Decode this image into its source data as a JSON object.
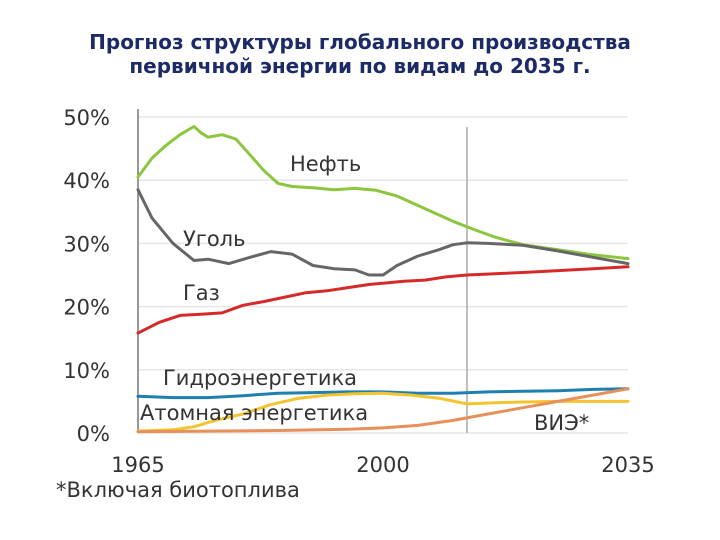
{
  "chart_data": {
    "type": "line",
    "title_lines": [
      "Прогноз структуры глобального производства",
      "первичной энергии по видам до 2035 г."
    ],
    "xlim": [
      1965,
      2035
    ],
    "ylim": [
      0,
      50
    ],
    "x_ticks": [
      1965,
      2000,
      2035
    ],
    "x_tick_labels": [
      "1965",
      "2000",
      "2035"
    ],
    "y_ticks": [
      0,
      10,
      20,
      30,
      40,
      50
    ],
    "y_tick_labels": [
      "0%",
      "10%",
      "20%",
      "30%",
      "40%",
      "50%"
    ],
    "forecast_start_year": 2012,
    "footnote": "*Включая биотоплива",
    "series": [
      {
        "name": "Нефть",
        "color": "#8cc63f",
        "points": [
          [
            1965,
            40.5
          ],
          [
            1967,
            43.5
          ],
          [
            1969,
            45.5
          ],
          [
            1971,
            47.2
          ],
          [
            1973,
            48.5
          ],
          [
            1974,
            47.5
          ],
          [
            1975,
            46.8
          ],
          [
            1977,
            47.2
          ],
          [
            1979,
            46.5
          ],
          [
            1981,
            44
          ],
          [
            1983,
            41.5
          ],
          [
            1985,
            39.5
          ],
          [
            1987,
            39
          ],
          [
            1990,
            38.8
          ],
          [
            1993,
            38.5
          ],
          [
            1996,
            38.7
          ],
          [
            1999,
            38.4
          ],
          [
            2002,
            37.5
          ],
          [
            2005,
            36
          ],
          [
            2008,
            34.5
          ],
          [
            2010,
            33.5
          ],
          [
            2013,
            32.2
          ],
          [
            2016,
            31
          ],
          [
            2020,
            29.8
          ],
          [
            2025,
            29
          ],
          [
            2030,
            28.2
          ],
          [
            2035,
            27.6
          ]
        ]
      },
      {
        "name": "Уголь",
        "color": "#666666",
        "points": [
          [
            1965,
            38.5
          ],
          [
            1967,
            34
          ],
          [
            1970,
            30
          ],
          [
            1973,
            27.3
          ],
          [
            1975,
            27.5
          ],
          [
            1978,
            26.8
          ],
          [
            1981,
            27.8
          ],
          [
            1984,
            28.7
          ],
          [
            1987,
            28.3
          ],
          [
            1990,
            26.5
          ],
          [
            1993,
            26
          ],
          [
            1996,
            25.8
          ],
          [
            1998,
            25
          ],
          [
            2000,
            25
          ],
          [
            2002,
            26.5
          ],
          [
            2005,
            28
          ],
          [
            2008,
            29
          ],
          [
            2010,
            29.8
          ],
          [
            2012,
            30.1
          ],
          [
            2015,
            30
          ],
          [
            2020,
            29.7
          ],
          [
            2025,
            28.8
          ],
          [
            2030,
            27.8
          ],
          [
            2035,
            26.8
          ]
        ]
      },
      {
        "name": "Газ",
        "color": "#d62a2a",
        "points": [
          [
            1965,
            15.8
          ],
          [
            1968,
            17.5
          ],
          [
            1971,
            18.6
          ],
          [
            1974,
            18.8
          ],
          [
            1977,
            19
          ],
          [
            1980,
            20.2
          ],
          [
            1983,
            20.8
          ],
          [
            1986,
            21.5
          ],
          [
            1989,
            22.2
          ],
          [
            1992,
            22.5
          ],
          [
            1995,
            23
          ],
          [
            1998,
            23.5
          ],
          [
            2000,
            23.7
          ],
          [
            2003,
            24
          ],
          [
            2006,
            24.2
          ],
          [
            2009,
            24.7
          ],
          [
            2012,
            25
          ],
          [
            2016,
            25.2
          ],
          [
            2020,
            25.4
          ],
          [
            2025,
            25.7
          ],
          [
            2030,
            26
          ],
          [
            2035,
            26.3
          ]
        ]
      },
      {
        "name": "Гидроэнергетика",
        "color": "#1f7faf",
        "points": [
          [
            1965,
            5.8
          ],
          [
            1970,
            5.6
          ],
          [
            1975,
            5.6
          ],
          [
            1980,
            5.9
          ],
          [
            1985,
            6.3
          ],
          [
            1990,
            6.4
          ],
          [
            1995,
            6.5
          ],
          [
            2000,
            6.5
          ],
          [
            2005,
            6.3
          ],
          [
            2010,
            6.3
          ],
          [
            2015,
            6.5
          ],
          [
            2020,
            6.6
          ],
          [
            2025,
            6.7
          ],
          [
            2030,
            6.9
          ],
          [
            2035,
            7
          ]
        ]
      },
      {
        "name": "Атомная энергетика",
        "color": "#f4c430",
        "points": [
          [
            1965,
            0.3
          ],
          [
            1970,
            0.5
          ],
          [
            1973,
            1
          ],
          [
            1976,
            2
          ],
          [
            1980,
            3
          ],
          [
            1984,
            4.5
          ],
          [
            1988,
            5.5
          ],
          [
            1992,
            6
          ],
          [
            1996,
            6.2
          ],
          [
            2000,
            6.3
          ],
          [
            2004,
            6
          ],
          [
            2008,
            5.5
          ],
          [
            2012,
            4.6
          ],
          [
            2016,
            4.8
          ],
          [
            2020,
            4.9
          ],
          [
            2025,
            5
          ],
          [
            2030,
            5
          ],
          [
            2035,
            5
          ]
        ]
      },
      {
        "name": "ВИЭ*",
        "color": "#e8905a",
        "points": [
          [
            1965,
            0.2
          ],
          [
            1975,
            0.3
          ],
          [
            1985,
            0.4
          ],
          [
            1995,
            0.6
          ],
          [
            2000,
            0.8
          ],
          [
            2005,
            1.2
          ],
          [
            2010,
            2
          ],
          [
            2015,
            3
          ],
          [
            2020,
            4
          ],
          [
            2025,
            5
          ],
          [
            2030,
            6
          ],
          [
            2035,
            7
          ]
        ]
      }
    ],
    "labels": [
      "Нефть",
      "Уголь",
      "Газ",
      "Гидроэнергетика",
      "Атомная энергетика",
      "ВИЭ*"
    ]
  }
}
